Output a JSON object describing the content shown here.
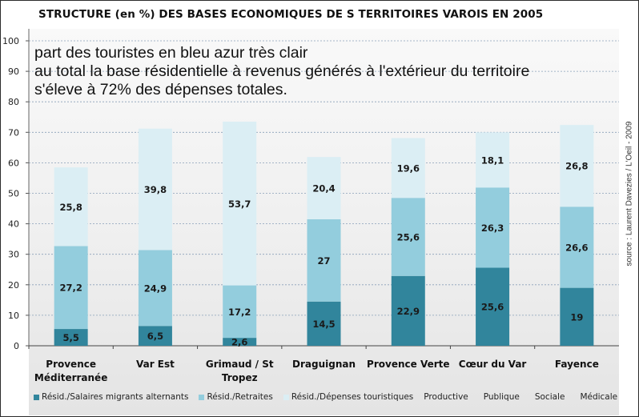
{
  "chart_data": {
    "type": "bar",
    "stacked": true,
    "title": "STRUCTURE (en %) DES BASES ECONOMIQUES DE S TERRITOIRES VAROIS EN 2005",
    "categories": [
      "Provence Méditerranée",
      "Var Est",
      "Grimaud / St Tropez",
      "Draguignan",
      "Provence Verte",
      "Cœur du Var",
      "Fayence"
    ],
    "category_lines": [
      [
        "Provence",
        "Méditerranée"
      ],
      [
        "Var Est"
      ],
      [
        "Grimaud / St",
        "Tropez"
      ],
      [
        "Draguignan"
      ],
      [
        "Provence Verte"
      ],
      [
        "Cœur du Var"
      ],
      [
        "Fayence"
      ]
    ],
    "series": [
      {
        "name": "Résid./Salaires migrants alternants",
        "color": "#31859c",
        "labels": [
          "5,5",
          "6,5",
          "2,6",
          "14,5",
          "22,9",
          "25,6",
          "19"
        ],
        "values": [
          5.5,
          6.5,
          2.6,
          14.5,
          22.9,
          25.6,
          19
        ]
      },
      {
        "name": "Résid./Retraites",
        "color": "#93cddd",
        "labels": [
          "27,2",
          "24,9",
          "17,2",
          "27",
          "25,6",
          "26,3",
          "26,6"
        ],
        "values": [
          27.2,
          24.9,
          17.2,
          27,
          25.6,
          26.3,
          26.6
        ]
      },
      {
        "name": "Résid./Dépenses touristiques",
        "color": "#dbeef4",
        "labels": [
          "25,8",
          "39,8",
          "53,7",
          "20,4",
          "19,6",
          "18,1",
          "26,8"
        ],
        "values": [
          25.8,
          39.8,
          53.7,
          20.4,
          19.6,
          18.1,
          26.8
        ]
      }
    ],
    "extra_legend": [
      "Productive",
      "Publique",
      "Sociale",
      "Médicale"
    ],
    "ylim": [
      0,
      100
    ],
    "yticks": [
      0,
      10,
      20,
      30,
      40,
      50,
      60,
      70,
      80,
      90,
      100
    ],
    "grid": true,
    "legend_position": "bottom"
  },
  "annotation": {
    "lines": [
      "part des touristes en bleu azur très clair",
      "au total la base résidentielle à revenus générés à l'extérieur du territoire",
      "s'éleve à 72% des dépenses totales."
    ]
  },
  "source_text": "source : Laurent Davezies / L'Oeil - 2009"
}
